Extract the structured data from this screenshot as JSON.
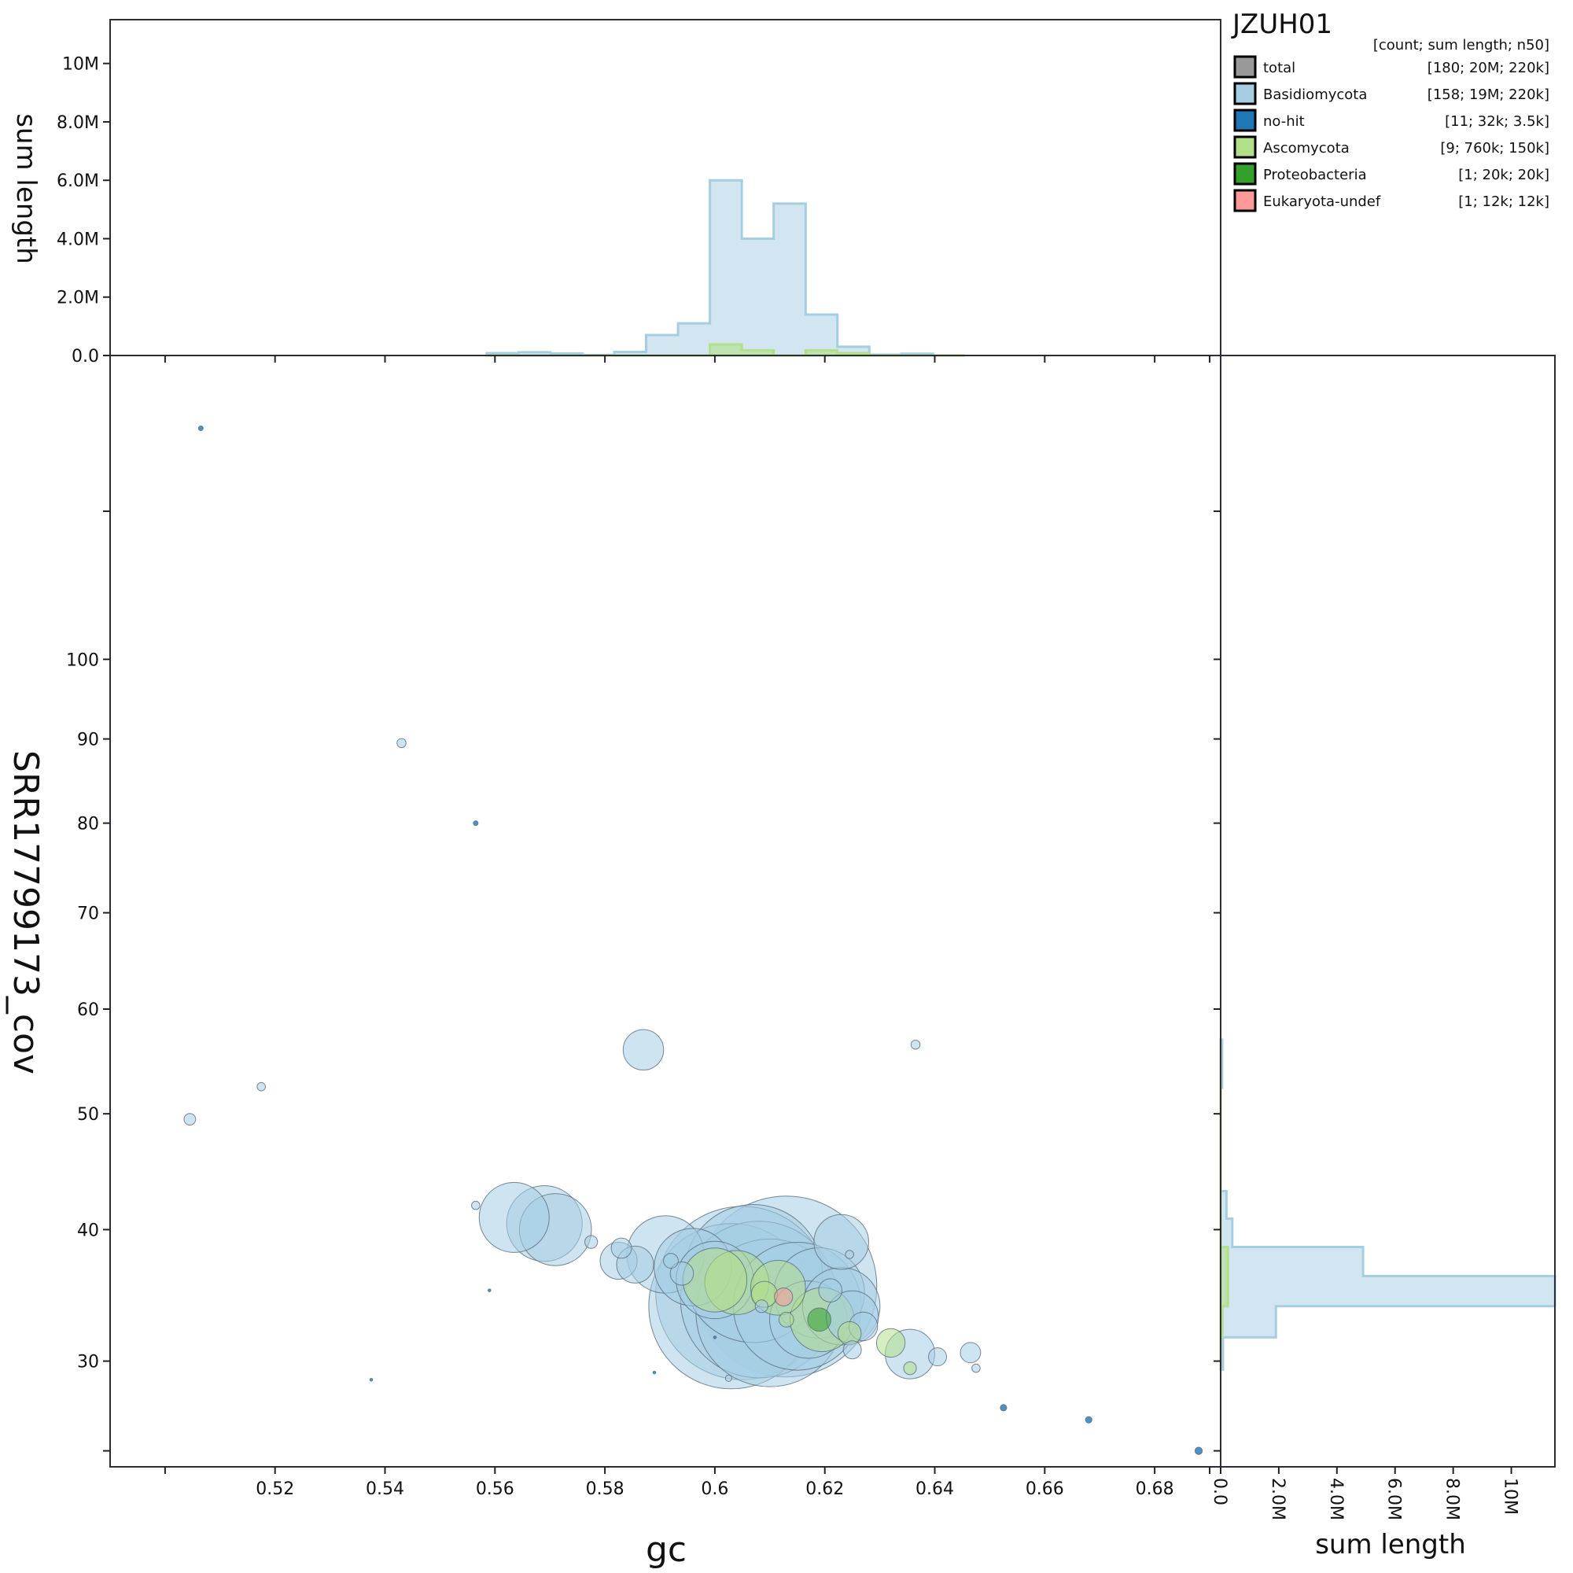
{
  "chart_data": {
    "type": "scatter",
    "title": "JZUH01",
    "legend_header": "[count; sum length; n50]",
    "legend_placement": "top-right",
    "xlabel": "gc",
    "ylabel": "SRR17799173_cov",
    "xlim": [
      0.49,
      0.692
    ],
    "ylim": [
      23,
      143
    ],
    "y_scale": "sqrt",
    "x_ticks": [
      "0.52",
      "0.54",
      "0.56",
      "0.58",
      "0.6",
      "0.62",
      "0.64",
      "0.66",
      "0.68"
    ],
    "y_ticks": [
      "30",
      "40",
      "50",
      "60",
      "70",
      "80",
      "90",
      "100"
    ],
    "hist_top": {
      "ylabel": "sum length",
      "ylim": [
        0,
        11500000
      ],
      "ticks": [
        "0.0",
        "2.0M",
        "4.0M",
        "6.0M",
        "8.0M",
        "10M"
      ],
      "bins": [
        0.5585,
        0.5643,
        0.5701,
        0.5759,
        0.5817,
        0.5875,
        0.5933,
        0.5991,
        0.6049,
        0.6107,
        0.6165,
        0.6223,
        0.6281,
        0.6339,
        0.6397,
        0.6455
      ],
      "series": [
        {
          "name": "Basidiomycota",
          "values": [
            80000,
            110000,
            70000,
            20000,
            120000,
            700000,
            1100000,
            6000000,
            4000000,
            5200000,
            1400000,
            300000,
            30000,
            60000,
            0
          ]
        },
        {
          "name": "Ascomycota",
          "values": [
            0,
            0,
            0,
            0,
            0,
            0,
            0,
            380000,
            180000,
            0,
            180000,
            80000,
            0,
            0,
            0
          ]
        }
      ]
    },
    "hist_right": {
      "xlabel": "sum length",
      "xlim": [
        0,
        11500000
      ],
      "ticks": [
        "0.0",
        "2.0M",
        "4.0M",
        "6.0M",
        "8.0M",
        "10M"
      ],
      "bins": [
        29.4,
        31.7,
        34.0,
        36.3,
        38.6,
        40.9,
        43.2,
        45.5,
        47.8,
        50.1,
        52.4,
        54.7,
        57.0
      ],
      "series": [
        {
          "name": "Basidiomycota",
          "values": [
            80000,
            1900000,
            11500000,
            4900000,
            400000,
            200000,
            0,
            0,
            0,
            0,
            50000,
            50000
          ]
        },
        {
          "name": "Ascomycota",
          "values": [
            0,
            60000,
            250000,
            250000,
            0,
            0,
            0,
            0,
            0,
            0,
            0,
            0
          ]
        }
      ]
    },
    "legend": [
      {
        "name": "total",
        "stats": "[180; 20M; 220k]",
        "color": "#999999"
      },
      {
        "name": "Basidiomycota",
        "stats": "[158; 19M; 220k]",
        "color": "#a6cee3"
      },
      {
        "name": "no-hit",
        "stats": "[11; 32k; 3.5k]",
        "color": "#1f78b4"
      },
      {
        "name": "Ascomycota",
        "stats": "[9; 760k; 150k]",
        "color": "#b2df8a"
      },
      {
        "name": "Proteobacteria",
        "stats": "[1; 20k; 20k]",
        "color": "#33a02c"
      },
      {
        "name": "Eukaryota-undef",
        "stats": "[1; 12k; 12k]",
        "color": "#fb9a99"
      }
    ],
    "points": [
      {
        "gc": 0.5065,
        "cov": 132,
        "len": 800,
        "group": "no-hit"
      },
      {
        "gc": 0.543,
        "cov": 89.5,
        "len": 3000,
        "group": "Basidiomycota"
      },
      {
        "gc": 0.5565,
        "cov": 80,
        "len": 800,
        "group": "no-hit"
      },
      {
        "gc": 0.5175,
        "cov": 52.5,
        "len": 2500,
        "group": "Basidiomycota"
      },
      {
        "gc": 0.5045,
        "cov": 49.5,
        "len": 5000,
        "group": "Basidiomycota"
      },
      {
        "gc": 0.587,
        "cov": 56,
        "len": 60000,
        "group": "Basidiomycota"
      },
      {
        "gc": 0.6365,
        "cov": 56.5,
        "len": 3000,
        "group": "Basidiomycota"
      },
      {
        "gc": 0.5565,
        "cov": 42,
        "len": 2500,
        "group": "Basidiomycota"
      },
      {
        "gc": 0.5635,
        "cov": 41,
        "len": 180000,
        "group": "Basidiomycota"
      },
      {
        "gc": 0.569,
        "cov": 40.5,
        "len": 210000,
        "group": "Basidiomycota"
      },
      {
        "gc": 0.571,
        "cov": 40,
        "len": 190000,
        "group": "Basidiomycota"
      },
      {
        "gc": 0.5775,
        "cov": 39,
        "len": 6000,
        "group": "Basidiomycota"
      },
      {
        "gc": 0.583,
        "cov": 38.5,
        "len": 15000,
        "group": "Basidiomycota"
      },
      {
        "gc": 0.5825,
        "cov": 37.5,
        "len": 50000,
        "group": "Basidiomycota"
      },
      {
        "gc": 0.5855,
        "cov": 37.2,
        "len": 50000,
        "group": "Basidiomycota"
      },
      {
        "gc": 0.591,
        "cov": 38,
        "len": 220000,
        "group": "Basidiomycota"
      },
      {
        "gc": 0.596,
        "cov": 37,
        "len": 220000,
        "group": "Basidiomycota"
      },
      {
        "gc": 0.6,
        "cov": 36,
        "len": 220000,
        "group": "Basidiomycota"
      },
      {
        "gc": 0.605,
        "cov": 35,
        "len": 1100000,
        "group": "Basidiomycota"
      },
      {
        "gc": 0.613,
        "cov": 35.5,
        "len": 1200000,
        "group": "Basidiomycota"
      },
      {
        "gc": 0.603,
        "cov": 34,
        "len": 1000000,
        "group": "Basidiomycota"
      },
      {
        "gc": 0.608,
        "cov": 34.5,
        "len": 900000,
        "group": "Basidiomycota"
      },
      {
        "gc": 0.61,
        "cov": 33.5,
        "len": 800000,
        "group": "Basidiomycota"
      },
      {
        "gc": 0.607,
        "cov": 36.5,
        "len": 700000,
        "group": "Basidiomycota"
      },
      {
        "gc": 0.615,
        "cov": 34,
        "len": 600000,
        "group": "Basidiomycota"
      },
      {
        "gc": 0.619,
        "cov": 35,
        "len": 300000,
        "group": "Basidiomycota"
      },
      {
        "gc": 0.617,
        "cov": 33,
        "len": 220000,
        "group": "Basidiomycota"
      },
      {
        "gc": 0.623,
        "cov": 34,
        "len": 220000,
        "group": "Basidiomycota"
      },
      {
        "gc": 0.625,
        "cov": 33.2,
        "len": 100000,
        "group": "Basidiomycota"
      },
      {
        "gc": 0.623,
        "cov": 39,
        "len": 110000,
        "group": "Basidiomycota"
      },
      {
        "gc": 0.6245,
        "cov": 38,
        "len": 2500,
        "group": "Basidiomycota"
      },
      {
        "gc": 0.627,
        "cov": 32.5,
        "len": 30000,
        "group": "Basidiomycota"
      },
      {
        "gc": 0.625,
        "cov": 30.8,
        "len": 12000,
        "group": "Basidiomycota"
      },
      {
        "gc": 0.6355,
        "cov": 30.5,
        "len": 90000,
        "group": "Basidiomycota"
      },
      {
        "gc": 0.6405,
        "cov": 30.3,
        "len": 12000,
        "group": "Basidiomycota"
      },
      {
        "gc": 0.6465,
        "cov": 30.6,
        "len": 15000,
        "group": "Basidiomycota"
      },
      {
        "gc": 0.6475,
        "cov": 29.5,
        "len": 2500,
        "group": "Basidiomycota"
      },
      {
        "gc": 0.6525,
        "cov": 26.8,
        "len": 1500,
        "group": "no-hit"
      },
      {
        "gc": 0.668,
        "cov": 26,
        "len": 1500,
        "group": "no-hit"
      },
      {
        "gc": 0.688,
        "cov": 24,
        "len": 2000,
        "group": "no-hit"
      },
      {
        "gc": 0.6025,
        "cov": 28.8,
        "len": 1500,
        "group": "Basidiomycota"
      },
      {
        "gc": 0.589,
        "cov": 29.2,
        "len": 300,
        "group": "no-hit"
      },
      {
        "gc": 0.5375,
        "cov": 28.7,
        "len": 300,
        "group": "no-hit"
      },
      {
        "gc": 0.559,
        "cov": 35.2,
        "len": 300,
        "group": "no-hit"
      },
      {
        "gc": 0.6,
        "cov": 31.7,
        "len": 300,
        "group": "no-hit"
      },
      {
        "gc": 0.592,
        "cov": 37.5,
        "len": 8000,
        "group": "Basidiomycota"
      },
      {
        "gc": 0.594,
        "cov": 36.5,
        "len": 20000,
        "group": "Basidiomycota"
      },
      {
        "gc": 0.6085,
        "cov": 34.0,
        "len": 6000,
        "group": "Basidiomycota"
      },
      {
        "gc": 0.621,
        "cov": 35.2,
        "len": 20000,
        "group": "Basidiomycota"
      },
      {
        "gc": 0.604,
        "cov": 35.8,
        "len": 150000,
        "group": "Ascomycota"
      },
      {
        "gc": 0.6,
        "cov": 36.0,
        "len": 150000,
        "group": "Ascomycota"
      },
      {
        "gc": 0.6115,
        "cov": 35.4,
        "len": 110000,
        "group": "Ascomycota"
      },
      {
        "gc": 0.6195,
        "cov": 33.0,
        "len": 150000,
        "group": "Ascomycota"
      },
      {
        "gc": 0.609,
        "cov": 34.9,
        "len": 25000,
        "group": "Ascomycota"
      },
      {
        "gc": 0.613,
        "cov": 33.0,
        "len": 8000,
        "group": "Ascomycota"
      },
      {
        "gc": 0.6245,
        "cov": 32.0,
        "len": 20000,
        "group": "Ascomycota"
      },
      {
        "gc": 0.632,
        "cov": 31.3,
        "len": 30000,
        "group": "Ascomycota"
      },
      {
        "gc": 0.6355,
        "cov": 29.5,
        "len": 6000,
        "group": "Ascomycota"
      },
      {
        "gc": 0.619,
        "cov": 33.0,
        "len": 20000,
        "group": "Proteobacteria"
      },
      {
        "gc": 0.6125,
        "cov": 34.7,
        "len": 12000,
        "group": "Eukaryota-undef"
      }
    ]
  }
}
